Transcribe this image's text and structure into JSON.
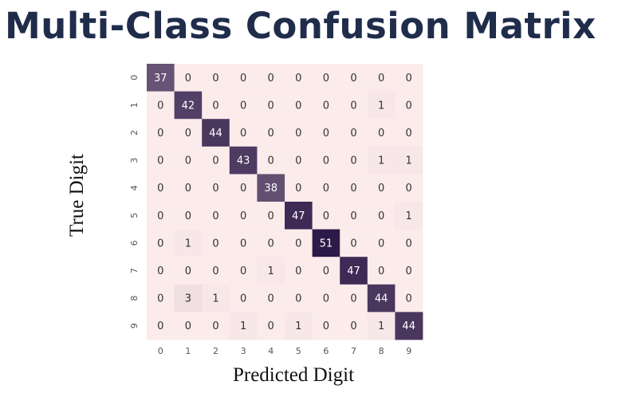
{
  "page": {
    "title": "Multi-Class Confusion Matrix"
  },
  "chart_data": {
    "type": "heatmap",
    "title": "Multi-Class Confusion Matrix",
    "xlabel": "Predicted Digit",
    "ylabel": "True Digit",
    "x_categories": [
      "0",
      "1",
      "2",
      "3",
      "4",
      "5",
      "6",
      "7",
      "8",
      "9"
    ],
    "y_categories": [
      "0",
      "1",
      "2",
      "3",
      "4",
      "5",
      "6",
      "7",
      "8",
      "9"
    ],
    "values": [
      [
        37,
        0,
        0,
        0,
        0,
        0,
        0,
        0,
        0,
        0
      ],
      [
        0,
        42,
        0,
        0,
        0,
        0,
        0,
        0,
        1,
        0
      ],
      [
        0,
        0,
        44,
        0,
        0,
        0,
        0,
        0,
        0,
        0
      ],
      [
        0,
        0,
        0,
        43,
        0,
        0,
        0,
        0,
        1,
        1
      ],
      [
        0,
        0,
        0,
        0,
        38,
        0,
        0,
        0,
        0,
        0
      ],
      [
        0,
        0,
        0,
        0,
        0,
        47,
        0,
        0,
        0,
        1
      ],
      [
        0,
        1,
        0,
        0,
        0,
        0,
        51,
        0,
        0,
        0
      ],
      [
        0,
        0,
        0,
        0,
        1,
        0,
        0,
        47,
        0,
        0
      ],
      [
        0,
        3,
        1,
        0,
        0,
        0,
        0,
        0,
        44,
        0
      ],
      [
        0,
        0,
        0,
        1,
        0,
        1,
        0,
        0,
        1,
        44
      ]
    ],
    "colormap": {
      "low": "#fbebeb",
      "high": "#2e1a48"
    }
  }
}
